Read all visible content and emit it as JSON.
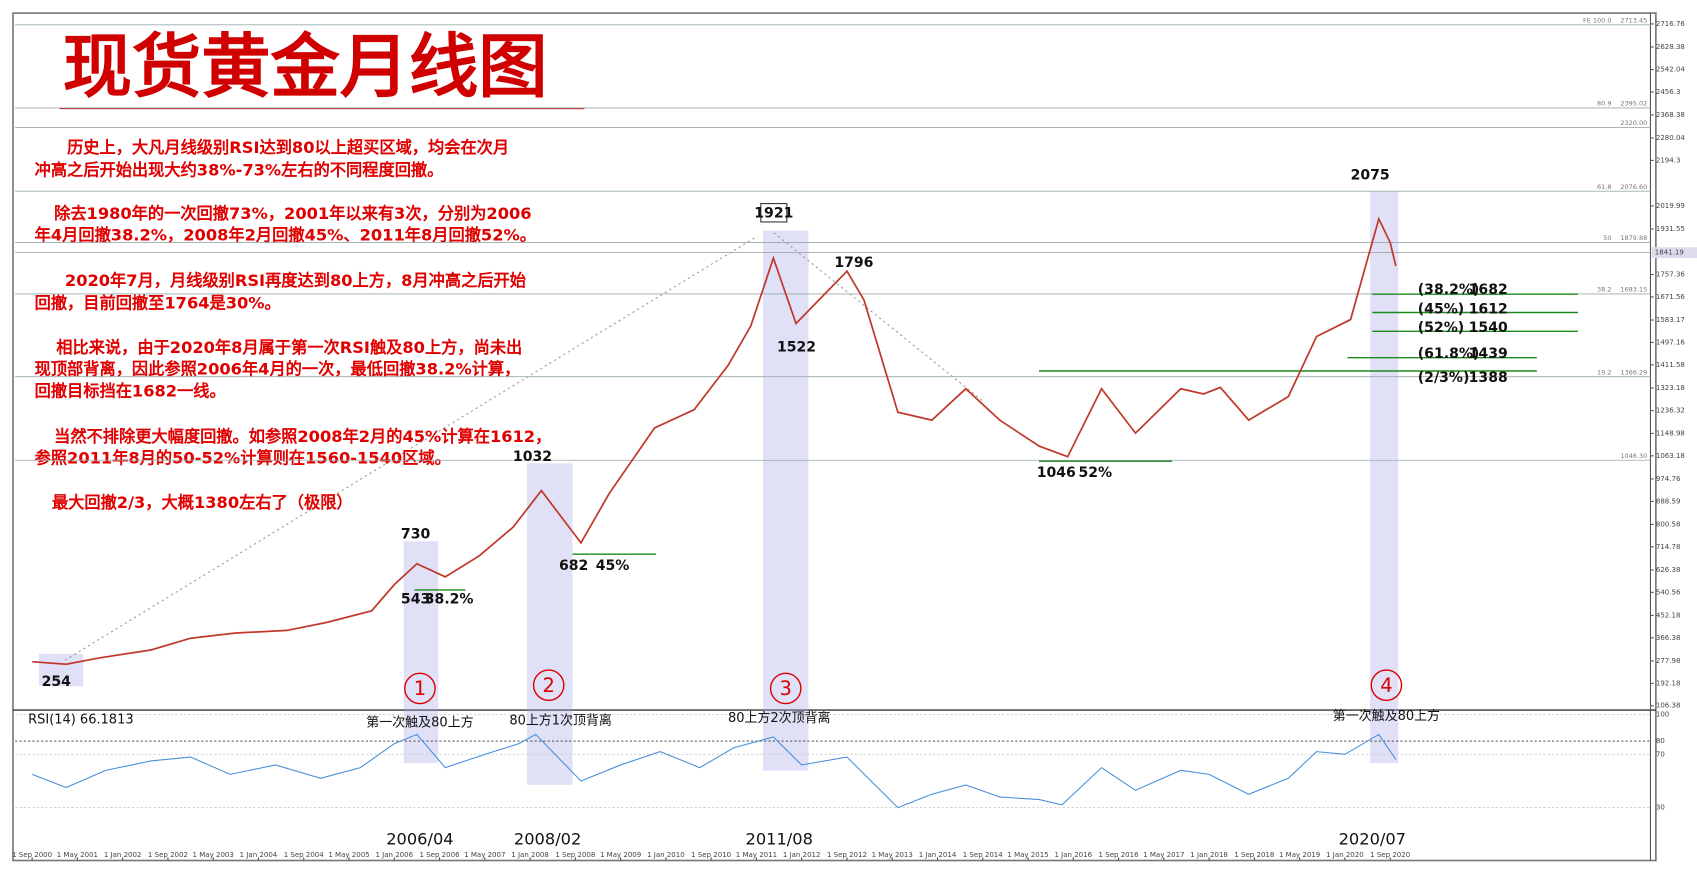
{
  "title": "现货黄金月线图",
  "notes": [
    "历史上，大凡月线级别RSI达到80以上超买区域，均会在次月",
    "冲高之后开始出现大约38%-73%左右的不同程度回撤。",
    "除去1980年的一次回撤73%，2001年以来有3次，分别为2006",
    "年4月回撤38.2%，2008年2月回撤45%、2011年8月回撤52%。",
    "2020年7月，月线级别RSI再度达到80上方，8月冲高之后开始",
    "回撤，目前回撤至1764是30%。",
    "相比来说，由于2020年8月属于第一次RSI触及80上方，尚未出",
    "现顶部背离，因此参照2006年4月的一次，最低回撤38.2%计算，",
    "回撤目标挡在1682一线。",
    "当然不排除更大幅度回撤。如参照2008年2月的45%计算在1612，",
    "参照2011年8月的50-52%计算则在1560-1540区域。",
    "最大回撤2/3，大概1380左右了（极限）"
  ],
  "chart_data": [
    {
      "type": "line",
      "name": "price",
      "x": [
        "2000-09",
        "2001-03",
        "2001-09",
        "2002-06",
        "2003-01",
        "2003-09",
        "2004-06",
        "2005-01",
        "2005-09",
        "2006-01",
        "2006-05",
        "2006-10",
        "2007-04",
        "2007-10",
        "2008-03",
        "2008-10",
        "2009-03",
        "2009-11",
        "2010-06",
        "2010-12",
        "2011-04",
        "2011-08",
        "2011-12",
        "2012-09",
        "2012-12",
        "2013-06",
        "2013-12",
        "2014-06",
        "2014-12",
        "2015-07",
        "2015-12",
        "2016-06",
        "2016-12",
        "2017-08",
        "2017-12",
        "2018-03",
        "2018-08",
        "2019-03",
        "2019-08",
        "2020-02",
        "2020-07",
        "2020-09",
        "2020-10"
      ],
      "values": [
        275,
        265,
        290,
        320,
        365,
        385,
        395,
        425,
        470,
        570,
        650,
        600,
        680,
        790,
        930,
        730,
        920,
        1170,
        1240,
        1410,
        1560,
        1820,
        1570,
        1770,
        1660,
        1230,
        1200,
        1320,
        1200,
        1100,
        1060,
        1320,
        1150,
        1320,
        1300,
        1325,
        1200,
        1290,
        1520,
        1585,
        1970,
        1880,
        1790
      ],
      "color": "#c0392b",
      "xlim": [
        "2000-06",
        "2024-07"
      ],
      "xticks": [
        {
          "value": "2000-09",
          "label": "1 Sep 2000"
        },
        {
          "value": "2001-05",
          "label": "1 May 2001"
        },
        {
          "value": "2002-01",
          "label": "1 Jan 2002"
        },
        {
          "value": "2002-09",
          "label": "1 Sep 2002"
        },
        {
          "value": "2003-05",
          "label": "1 May 2003"
        },
        {
          "value": "2004-01",
          "label": "1 Jan 2004"
        },
        {
          "value": "2004-09",
          "label": "1 Sep 2004"
        },
        {
          "value": "2005-05",
          "label": "1 May 2005"
        },
        {
          "value": "2006-01",
          "label": "1 Jan 2006"
        },
        {
          "value": "2006-09",
          "label": "1 Sep 2006"
        },
        {
          "value": "2007-05",
          "label": "1 May 2007"
        },
        {
          "value": "2008-01",
          "label": "1 Jan 2008"
        },
        {
          "value": "2008-09",
          "label": "1 Sep 2008"
        },
        {
          "value": "2009-05",
          "label": "1 May 2009"
        },
        {
          "value": "2010-01",
          "label": "1 Jan 2010"
        },
        {
          "value": "2010-09",
          "label": "1 Sep 2010"
        },
        {
          "value": "2011-05",
          "label": "1 May 2011"
        },
        {
          "value": "2012-01",
          "label": "1 Jan 2012"
        },
        {
          "value": "2012-09",
          "label": "1 Sep 2012"
        },
        {
          "value": "2013-05",
          "label": "1 May 2013"
        },
        {
          "value": "2014-01",
          "label": "1 Jan 2014"
        },
        {
          "value": "2014-09",
          "label": "1 Sep 2014"
        },
        {
          "value": "2015-05",
          "label": "1 May 2015"
        },
        {
          "value": "2016-01",
          "label": "1 Jan 2016"
        },
        {
          "value": "2016-09",
          "label": "1 Sep 2016"
        },
        {
          "value": "2017-05",
          "label": "1 May 2017"
        },
        {
          "value": "2018-01",
          "label": "1 Jan 2018"
        },
        {
          "value": "2018-09",
          "label": "1 Sep 2018"
        },
        {
          "value": "2019-05",
          "label": "1 May 2019"
        },
        {
          "value": "2020-01",
          "label": "1 Jan 2020"
        },
        {
          "value": "2020-09",
          "label": "1 Sep 2020"
        }
      ],
      "ylim": [
        94,
        2750
      ],
      "yticks": [
        2716.76,
        2628.38,
        2542.04,
        2456.3,
        2368.38,
        2280.04,
        2194.3,
        2019.99,
        1931.55,
        1757.36,
        1671.56,
        1583.17,
        1497.16,
        1411.58,
        1323.18,
        1236.32,
        1148.98,
        1063.18,
        974.76,
        888.59,
        800.58,
        714.78,
        626.38,
        540.56,
        452.18,
        366.38,
        277.98,
        192.18,
        106.38
      ],
      "last_value": 1841.19,
      "fib_levels": [
        {
          "name": "FE 100.0",
          "value": 2713.45
        },
        {
          "name": "80.9",
          "value": 2395.02
        },
        {
          "value": 2320,
          "value_label": "2320.00"
        },
        {
          "name": "61.8",
          "value": 2076.6,
          "value_label": "2076.60"
        },
        {
          "name": "50",
          "value": 1879.88
        },
        {
          "name": "38.2",
          "value": 1683.15
        },
        {
          "name": "19.2",
          "value": 1366.29
        },
        {
          "value": 1046.3,
          "value_label": "1046.30"
        }
      ],
      "price_labels": [
        254,
        730,
        543,
        1032,
        682,
        1921,
        1522,
        1796,
        1046,
        2075
      ],
      "pct_labels": [
        "38.2%",
        "45%",
        "52%"
      ],
      "retracements": [
        {
          "label": "(38.2%)",
          "value": 1682
        },
        {
          "label": "(45%)",
          "value": 1612
        },
        {
          "label": "(52%)",
          "value": 1540
        },
        {
          "label": "(61.8%)",
          "value": 1439
        },
        {
          "label": "(2/3%)",
          "value": 1388
        }
      ],
      "retracement_color": "#1a8a1a",
      "markers": [
        "1",
        "2",
        "3",
        "4"
      ],
      "period_labels": [
        "2006/04",
        "2008/02",
        "2011/08",
        "2020/07"
      ]
    },
    {
      "type": "line",
      "name": "RSI(14) 66.1813",
      "x": [
        "2000-09",
        "2001-03",
        "2001-10",
        "2002-06",
        "2003-01",
        "2003-08",
        "2004-04",
        "2004-12",
        "2005-07",
        "2006-01",
        "2006-05",
        "2006-10",
        "2007-05",
        "2007-11",
        "2008-02",
        "2008-10",
        "2009-05",
        "2009-12",
        "2010-07",
        "2011-01",
        "2011-08",
        "2012-01",
        "2012-09",
        "2013-06",
        "2013-12",
        "2014-06",
        "2014-12",
        "2015-07",
        "2015-11",
        "2016-06",
        "2016-12",
        "2017-08",
        "2018-01",
        "2018-08",
        "2019-03",
        "2019-08",
        "2020-01",
        "2020-07",
        "2020-10"
      ],
      "values": [
        55,
        45,
        58,
        65,
        68,
        55,
        62,
        52,
        60,
        78,
        85,
        60,
        70,
        78,
        85,
        50,
        62,
        72,
        60,
        75,
        83,
        62,
        68,
        30,
        40,
        47,
        38,
        36,
        32,
        60,
        43,
        58,
        55,
        40,
        52,
        72,
        70,
        85,
        66.18
      ],
      "color": "#4a90d9",
      "ylim": [
        0,
        100
      ],
      "yticks": [
        100,
        80,
        70,
        30
      ],
      "annotations": [
        "第一次触及80上方",
        "80上方1次顶背离",
        "80上方2次顶背离",
        "第一次触及80上方"
      ]
    }
  ]
}
